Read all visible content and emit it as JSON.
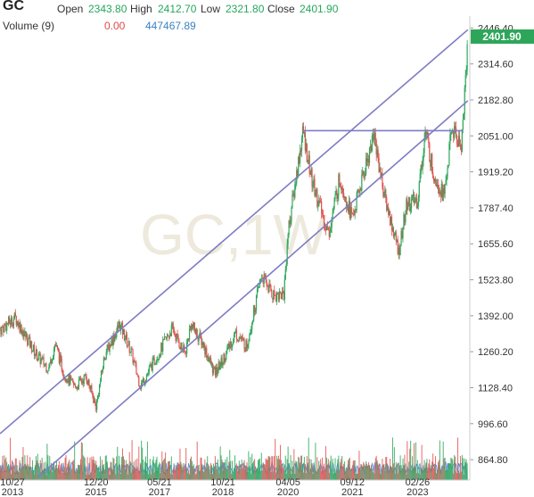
{
  "header": {
    "symbol": "GC",
    "open_label": "Open",
    "open": "2343.80",
    "high_label": "High",
    "high": "2412.70",
    "low_label": "Low",
    "low": "2321.80",
    "close_label": "Close",
    "close": "2401.90",
    "volume_label": "Volume (9)",
    "volume_value": "0.00",
    "volume_ma": "447467.89"
  },
  "watermark": "GC,1W",
  "last_price_label": "2401.90",
  "colors": {
    "up": "#2ea65a",
    "down": "#e0524f",
    "trendline": "#7d7cc4",
    "volume_area": "#5b8fd6",
    "price_tag": "#2ea65a"
  },
  "chart_data": {
    "type": "candlestick",
    "interval": "1W",
    "y_axis_ticks": [
      2446.4,
      2314.6,
      2182.8,
      2051.0,
      1919.2,
      1787.4,
      1655.6,
      1523.8,
      1392.0,
      1260.2,
      1128.4,
      996.6,
      864.8
    ],
    "x_axis_ticks": [
      {
        "line1": "10/27",
        "line2": "2013"
      },
      {
        "line1": "12/20",
        "line2": "2015"
      },
      {
        "line1": "05/21",
        "line2": "2017"
      },
      {
        "line1": "10/21",
        "line2": "2018"
      },
      {
        "line1": "04/05",
        "line2": "2020"
      },
      {
        "line1": "09/12",
        "line2": "2021"
      },
      {
        "line1": "02/26",
        "line2": "2023"
      }
    ],
    "ylim": [
      790,
      2490
    ],
    "price_path": [
      [
        "2013-10-27",
        1340
      ],
      [
        "2014-03-01",
        1385
      ],
      [
        "2014-06-01",
        1310
      ],
      [
        "2014-09-01",
        1240
      ],
      [
        "2014-12-01",
        1200
      ],
      [
        "2015-01-20",
        1290
      ],
      [
        "2015-04-01",
        1180
      ],
      [
        "2015-07-01",
        1130
      ],
      [
        "2015-10-01",
        1170
      ],
      [
        "2015-12-20",
        1060
      ],
      [
        "2016-03-01",
        1250
      ],
      [
        "2016-07-01",
        1360
      ],
      [
        "2016-10-01",
        1260
      ],
      [
        "2016-12-15",
        1135
      ],
      [
        "2017-05-21",
        1260
      ],
      [
        "2017-09-01",
        1345
      ],
      [
        "2017-12-15",
        1250
      ],
      [
        "2018-02-01",
        1360
      ],
      [
        "2018-05-01",
        1300
      ],
      [
        "2018-08-15",
        1180
      ],
      [
        "2018-10-21",
        1230
      ],
      [
        "2019-02-01",
        1330
      ],
      [
        "2019-05-01",
        1280
      ],
      [
        "2019-09-01",
        1540
      ],
      [
        "2019-12-01",
        1470
      ],
      [
        "2020-03-01",
        1470
      ],
      [
        "2020-04-05",
        1700
      ],
      [
        "2020-08-05",
        2070
      ],
      [
        "2020-10-15",
        1890
      ],
      [
        "2021-03-01",
        1690
      ],
      [
        "2021-06-01",
        1900
      ],
      [
        "2021-09-12",
        1750
      ],
      [
        "2022-03-07",
        2060
      ],
      [
        "2022-06-01",
        1830
      ],
      [
        "2022-09-26",
        1625
      ],
      [
        "2022-12-01",
        1800
      ],
      [
        "2023-02-26",
        1815
      ],
      [
        "2023-05-01",
        2070
      ],
      [
        "2023-07-01",
        1920
      ],
      [
        "2023-10-01",
        1830
      ],
      [
        "2023-12-04",
        2080
      ],
      [
        "2024-02-15",
        2010
      ],
      [
        "2024-03-01",
        2090
      ],
      [
        "2024-04-12",
        2401.9
      ]
    ],
    "resistance_line": {
      "from": [
        "2020-08-01",
        2070
      ],
      "to": [
        "2024-03-01",
        2070
      ]
    },
    "channel_upper": {
      "from": [
        "2013-10-27",
        960
      ],
      "to": [
        "2024-04-12",
        2440
      ]
    },
    "channel_lower": {
      "from": [
        "2014-09-01",
        800
      ],
      "to": [
        "2024-04-12",
        2180
      ]
    },
    "date_range": [
      "2013-10-27",
      "2024-04-28"
    ]
  }
}
